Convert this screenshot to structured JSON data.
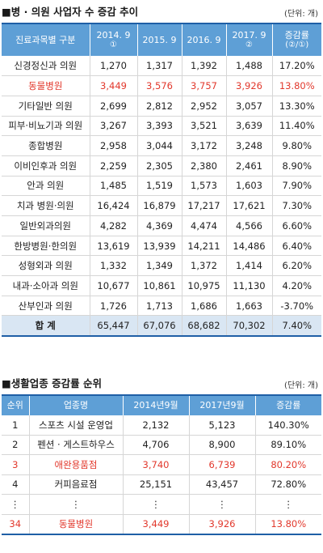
{
  "table1": {
    "title": "■병 · 의원 사업자 수 증감 추이",
    "unit": "(단위: 개)",
    "headers": [
      {
        "main": "진료과목별 구분",
        "sub": ""
      },
      {
        "main": "2014. 9",
        "sub": "①"
      },
      {
        "main": "2015. 9",
        "sub": ""
      },
      {
        "main": "2016. 9",
        "sub": ""
      },
      {
        "main": "2017. 9",
        "sub": "②"
      },
      {
        "main": "증감률",
        "sub": "(②/①)"
      }
    ],
    "rows": [
      [
        "신경정신과 의원",
        "1,270",
        "1,317",
        "1,392",
        "1,488",
        "17.20%"
      ],
      [
        "동물병원",
        "3,449",
        "3,576",
        "3,757",
        "3,926",
        "13.80%"
      ],
      [
        "기타일반 의원",
        "2,699",
        "2,812",
        "2,952",
        "3,057",
        "13.30%"
      ],
      [
        "피부·비뇨기과 의원",
        "3,267",
        "3,393",
        "3,521",
        "3,639",
        "11.40%"
      ],
      [
        "종합병원",
        "2,958",
        "3,044",
        "3,172",
        "3,248",
        "9.80%"
      ],
      [
        "이비인후과 의원",
        "2,259",
        "2,305",
        "2,380",
        "2,461",
        "8.90%"
      ],
      [
        "안과 의원",
        "1,485",
        "1,519",
        "1,573",
        "1,603",
        "7.90%"
      ],
      [
        "치과 병원·의원",
        "16,424",
        "16,879",
        "17,217",
        "17,621",
        "7.30%"
      ],
      [
        "일반외과의원",
        "4,282",
        "4,369",
        "4,474",
        "4,566",
        "6.60%"
      ],
      [
        "한방병원·한의원",
        "13,619",
        "13,939",
        "14,211",
        "14,486",
        "6.40%"
      ],
      [
        "성형외과 의원",
        "1,332",
        "1,349",
        "1,372",
        "1,414",
        "6.20%"
      ],
      [
        "내과·소아과 의원",
        "10,677",
        "10,861",
        "10,975",
        "11,130",
        "4.20%"
      ],
      [
        "산부인과 의원",
        "1,726",
        "1,713",
        "1,686",
        "1,663",
        "-3.70%"
      ]
    ],
    "total": [
      "합 계",
      "65,447",
      "67,076",
      "68,682",
      "70,302",
      "7.40%"
    ],
    "highlight_row": 1,
    "highlight_color": "#e2382c",
    "header_color": "#5e9fd6",
    "total_bg": "#d9e6f3"
  },
  "table2": {
    "title": "■생활업종 증감률 순위",
    "unit": "(단위: 개)",
    "headers": [
      "순위",
      "업종명",
      "2014년9월",
      "2017년9월",
      "증감률"
    ],
    "rows": [
      [
        "1",
        "스포츠 시설 운영업",
        "2,132",
        "5,123",
        "140.30%"
      ],
      [
        "2",
        "펜션 · 게스트하우스",
        "4,706",
        "8,900",
        "89.10%"
      ],
      [
        "3",
        "애완용품점",
        "3,740",
        "6,739",
        "80.20%"
      ],
      [
        "4",
        "커피음료점",
        "25,151",
        "43,457",
        "72.80%"
      ],
      [
        "⋮",
        "⋮",
        "⋮",
        "⋮",
        "⋮"
      ],
      [
        "34",
        "동물병원",
        "3,449",
        "3,926",
        "13.80%"
      ]
    ],
    "highlight_rows": [
      2,
      5
    ]
  }
}
